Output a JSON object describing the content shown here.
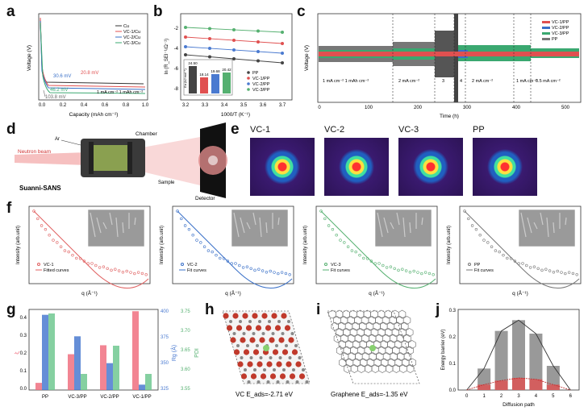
{
  "panels": {
    "a": {
      "label": "a",
      "xlabel": "Capacity (mAh cm⁻²)",
      "ylabel": "Voltage (V)",
      "xticks": [
        "0.0",
        "0.2",
        "0.4",
        "0.6",
        "0.8",
        "1.0"
      ],
      "legend": [
        "Cu",
        "VC-1/Cu",
        "VC-2/Cu",
        "VC-3/Cu"
      ],
      "colors": [
        "#333333",
        "#e05050",
        "#3a70c8",
        "#3aa870"
      ],
      "annotations": [
        "30.6 mV",
        "20.8 mV",
        "46.2 mV",
        "103.8 mV"
      ],
      "condition": "1 mA cm⁻² 1 mAh cm⁻²"
    },
    "b": {
      "label": "b",
      "xlabel": "1000/T (K⁻¹)",
      "ylabel": "ln (R_SEI⁻¹/Ω⁻¹)",
      "xticks": [
        "3.2",
        "3.3",
        "3.4",
        "3.5",
        "3.6",
        "3.7"
      ],
      "yticks": [
        "-2",
        "-4",
        "-6",
        "-8"
      ],
      "legend": [
        "PP",
        "VC-1/PP",
        "VC-2/PP",
        "VC-3/PP"
      ],
      "inset_values": [
        "24.50",
        "18.14",
        "19.68",
        "20.42"
      ],
      "inset_ylabel": "Ea (kJ mol⁻¹)"
    },
    "c": {
      "label": "c",
      "xlabel": "Time (h)",
      "ylabel": "Voltage (V)",
      "xticks": [
        "0",
        "100",
        "200",
        "300",
        "400",
        "500"
      ],
      "legend": [
        "VC-1/PP",
        "VC-2/PP",
        "VC-3/PP",
        "PP"
      ],
      "segments": [
        "1 mA cm⁻² 1 mAh cm⁻²",
        "2 mA cm⁻²",
        "3",
        "4",
        "2 mA cm⁻²",
        "1 mA cm⁻²",
        "0.5 mA cm⁻²"
      ]
    },
    "d": {
      "label": "d",
      "beam": "Neutron beam",
      "gas": "Ar",
      "chamber": "Chamber",
      "sample": "Sample",
      "detector": "Detector",
      "instrument": "Suanni-SANS"
    },
    "e": {
      "label": "e",
      "titles": [
        "VC-1",
        "VC-2",
        "VC-3",
        "PP"
      ]
    },
    "f": {
      "label": "f",
      "xlabel": "q (Å⁻¹)",
      "ylabel": "Intensity (arb.unit)",
      "items": [
        {
          "legend": "VC-1",
          "fit": "Fitted curves",
          "color": "#e06060"
        },
        {
          "legend": "VC-2",
          "fit": "Fit curves",
          "color": "#3a70c8"
        },
        {
          "legend": "VC-3",
          "fit": "Fit curves",
          "color": "#55b070"
        },
        {
          "legend": "PP",
          "fit": "Fit curves",
          "color": "#777777"
        }
      ]
    },
    "g": {
      "label": "g",
      "categories": [
        "PP",
        "VC-3/PP",
        "VC-2/PP",
        "VC-1/PP"
      ],
      "ylabel_left": "ξ",
      "ylabel_mid": "Rg (Å)",
      "ylabel_right": "PDI",
      "left_ticks": [
        "0.0",
        "0.1",
        "0.2",
        "0.3",
        "0.4"
      ],
      "mid_ticks": [
        "325",
        "350",
        "375",
        "400"
      ],
      "right_ticks": [
        "3.55",
        "3.60",
        "3.65",
        "3.70",
        "3.75"
      ]
    },
    "h": {
      "label": "h",
      "caption": "VC E_ads=-2.71 eV"
    },
    "i": {
      "label": "i",
      "caption": "Graphene E_ads=-1.35 eV"
    },
    "j": {
      "label": "j",
      "xlabel": "Diffusion path",
      "ylabel": "Energy barrier (eV)",
      "xticks": [
        "0",
        "1",
        "2",
        "3",
        "4",
        "5",
        "6"
      ],
      "yticks": [
        "0.0",
        "0.1",
        "0.2",
        "0.3"
      ]
    }
  },
  "chart_data": [
    {
      "type": "bar",
      "title": "",
      "categories": [
        "PP",
        "VC-3/PP",
        "VC-2/PP",
        "VC-1/PP"
      ],
      "series": [
        {
          "name": "ξ",
          "values": [
            0.04,
            0.2,
            0.25,
            0.44
          ],
          "color": "#f07080"
        },
        {
          "name": "Rg",
          "values": [
            395,
            375,
            350,
            330
          ],
          "color": "#4a7ad0"
        },
        {
          "name": "PDI",
          "values": [
            3.74,
            3.59,
            3.66,
            3.59
          ],
          "color": "#70c890"
        }
      ]
    },
    {
      "type": "bar",
      "title": "",
      "xlabel": "Diffusion path",
      "ylabel": "Energy barrier (eV)",
      "categories": [
        "0",
        "1",
        "2",
        "3",
        "4",
        "5",
        "6"
      ],
      "series": [
        {
          "name": "grey",
          "values": [
            0,
            0.08,
            0.22,
            0.26,
            0.21,
            0.09,
            0
          ]
        },
        {
          "name": "red",
          "values": [
            0,
            0.02,
            0.035,
            0.045,
            0.04,
            0.02,
            0
          ]
        }
      ],
      "ylim": [
        0,
        0.3
      ]
    }
  ]
}
